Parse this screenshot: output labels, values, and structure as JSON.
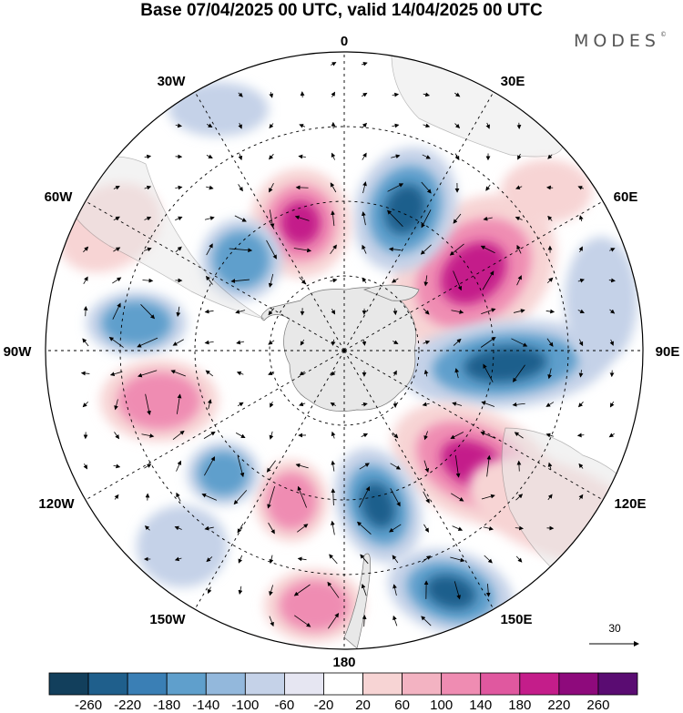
{
  "title": "Base 07/04/2025 00 UTC, valid 14/04/2025 00 UTC",
  "brand": "MODES",
  "brand_mark": "©",
  "longitude_labels": [
    {
      "key": "0",
      "text": "0"
    },
    {
      "key": "30E",
      "text": "30E"
    },
    {
      "key": "60E",
      "text": "60E"
    },
    {
      "key": "90E",
      "text": "90E"
    },
    {
      "key": "120E",
      "text": "120E"
    },
    {
      "key": "150E",
      "text": "150E"
    },
    {
      "key": "180",
      "text": "180"
    },
    {
      "key": "150W",
      "text": "150W"
    },
    {
      "key": "120W",
      "text": "120W"
    },
    {
      "key": "90W",
      "text": "90W"
    },
    {
      "key": "60W",
      "text": "60W"
    },
    {
      "key": "30W",
      "text": "30W"
    }
  ],
  "reference_vector": "30",
  "colorbar": {
    "labels": [
      "-260",
      "-220",
      "-180",
      "-140",
      "-100",
      "-60",
      "-20",
      "20",
      "60",
      "100",
      "140",
      "180",
      "220",
      "260"
    ],
    "colors": [
      "#123f5c",
      "#1f5f8c",
      "#3a7fb5",
      "#5f9fcc",
      "#93b8dc",
      "#c5d2e8",
      "#e6e6f2",
      "#ffffff",
      "#f7d4d4",
      "#f3b3c2",
      "#ef8cb2",
      "#e0589f",
      "#c41d8a",
      "#8e0a7c",
      "#5a0c72"
    ]
  },
  "anomaly_colors": {
    "neg_strong": "#1f5f8c",
    "neg_mid": "#5f9fcc",
    "neg_weak": "#c5d2e8",
    "pos_weak": "#f7d4d4",
    "pos_mid": "#ef8cb2",
    "pos_strong": "#c41d8a",
    "land": "#e8e8e8"
  }
}
